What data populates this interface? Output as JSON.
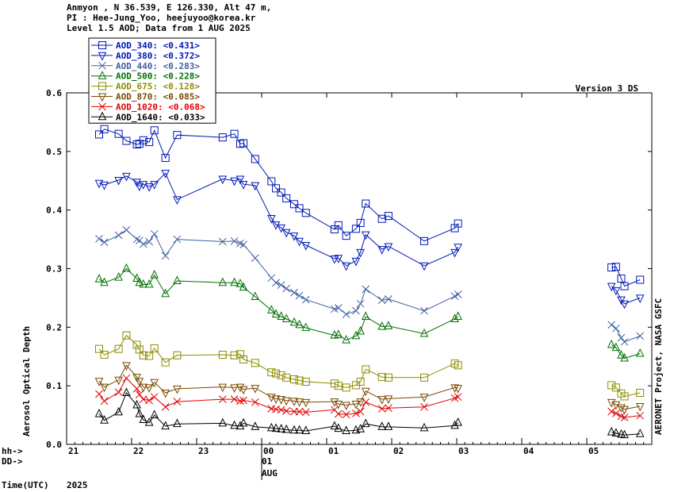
{
  "header": {
    "line1": "Anmyon , N 36.539, E 126.330, Alt 47 m,",
    "line2": "PI : Hee-Jung_Yoo, heejuyoo@korea.kr",
    "line3": "Level 1.5 AOD; Data from 1 AUG 2025"
  },
  "version_label": "Version 3 DS",
  "credit_label": "AERONET Project, NASA GSFC",
  "x_axis": {
    "hh_label": "hh->",
    "dd_label": "DD->",
    "time_label": "Time(UTC)",
    "year_label": "2025",
    "hour_ticks": [
      "21",
      "22",
      "23",
      "00",
      "01",
      "02",
      "03",
      "04",
      "05"
    ],
    "day_tick": "01",
    "month_tick": "AUG"
  },
  "chart_data": {
    "type": "line",
    "ylabel": "Aerosol Optical Depth",
    "ylim": [
      0.0,
      0.6
    ],
    "yticks": [
      "0.0",
      "0.1",
      "0.2",
      "0.3",
      "0.4",
      "0.5",
      "0.6"
    ],
    "xlim": [
      21.0,
      30.0
    ],
    "x_units": "hours UTC since 00:00 on 31 JUL 2025 (00 = 1 AUG 00 UTC)",
    "legend_position": "top-left",
    "series": [
      {
        "name": "AOD_340",
        "mean": "<0.431>",
        "color": "#0018b4",
        "marker": "square",
        "x": [
          21.5,
          21.58,
          21.8,
          21.92,
          22.08,
          22.12,
          22.18,
          22.27,
          22.35,
          22.52,
          22.7,
          23.4,
          23.58,
          23.67,
          23.72,
          23.9,
          24.15,
          24.22,
          24.3,
          24.38,
          24.5,
          24.58,
          24.68,
          25.12,
          25.18,
          25.3,
          25.45,
          25.52,
          25.6,
          25.85,
          25.95,
          26.5,
          26.97,
          27.02
        ],
        "y": [
          0.529,
          0.538,
          0.53,
          0.518,
          0.512,
          0.513,
          0.519,
          0.516,
          0.536,
          0.489,
          0.528,
          0.524,
          0.53,
          0.513,
          0.514,
          0.487,
          0.449,
          0.437,
          0.43,
          0.42,
          0.41,
          0.403,
          0.395,
          0.367,
          0.374,
          0.356,
          0.368,
          0.378,
          0.411,
          0.385,
          0.39,
          0.347,
          0.369,
          0.377
        ]
      },
      {
        "name": "AOD_380",
        "mean": "<0.372>",
        "color": "#0018b4",
        "marker": "triangle-down",
        "x": [
          21.5,
          21.58,
          21.8,
          21.92,
          22.08,
          22.12,
          22.18,
          22.27,
          22.35,
          22.52,
          22.7,
          23.4,
          23.58,
          23.67,
          23.72,
          23.9,
          24.15,
          24.22,
          24.3,
          24.38,
          24.5,
          24.58,
          24.68,
          25.12,
          25.18,
          25.3,
          25.45,
          25.52,
          25.6,
          25.85,
          25.95,
          26.5,
          26.97,
          27.02
        ],
        "y": [
          0.446,
          0.443,
          0.451,
          0.458,
          0.448,
          0.441,
          0.444,
          0.44,
          0.444,
          0.463,
          0.418,
          0.453,
          0.45,
          0.453,
          0.444,
          0.442,
          0.386,
          0.375,
          0.37,
          0.362,
          0.356,
          0.347,
          0.34,
          0.317,
          0.318,
          0.305,
          0.313,
          0.328,
          0.358,
          0.333,
          0.338,
          0.305,
          0.328,
          0.337
        ]
      },
      {
        "name": "AOD_440",
        "mean": "<0.283>",
        "color": "#4060a0",
        "marker": "x",
        "x": [
          21.5,
          21.58,
          21.8,
          21.92,
          22.08,
          22.12,
          22.18,
          22.27,
          22.35,
          22.52,
          22.7,
          23.4,
          23.58,
          23.67,
          23.72,
          23.9,
          24.15,
          24.22,
          24.3,
          24.38,
          24.5,
          24.58,
          24.68,
          25.12,
          25.18,
          25.3,
          25.45,
          25.52,
          25.6,
          25.85,
          25.95,
          26.5,
          26.97,
          27.02
        ],
        "y": [
          0.351,
          0.345,
          0.357,
          0.366,
          0.35,
          0.348,
          0.342,
          0.346,
          0.359,
          0.322,
          0.35,
          0.346,
          0.347,
          0.343,
          0.341,
          0.318,
          0.284,
          0.276,
          0.272,
          0.266,
          0.259,
          0.254,
          0.247,
          0.231,
          0.233,
          0.222,
          0.228,
          0.24,
          0.265,
          0.246,
          0.248,
          0.228,
          0.253,
          0.256
        ]
      },
      {
        "name": "AOD_500",
        "mean": "<0.228>",
        "color": "#007000",
        "marker": "triangle-up",
        "x": [
          21.5,
          21.58,
          21.8,
          21.92,
          22.08,
          22.12,
          22.18,
          22.27,
          22.35,
          22.52,
          22.7,
          23.4,
          23.58,
          23.67,
          23.72,
          23.9,
          24.15,
          24.22,
          24.3,
          24.38,
          24.5,
          24.58,
          24.68,
          25.12,
          25.18,
          25.3,
          25.45,
          25.52,
          25.6,
          25.85,
          25.95,
          26.5,
          26.97,
          27.02
        ],
        "y": [
          0.282,
          0.276,
          0.285,
          0.3,
          0.283,
          0.276,
          0.273,
          0.273,
          0.289,
          0.257,
          0.279,
          0.276,
          0.276,
          0.274,
          0.268,
          0.252,
          0.229,
          0.222,
          0.218,
          0.214,
          0.208,
          0.204,
          0.199,
          0.186,
          0.187,
          0.178,
          0.185,
          0.193,
          0.218,
          0.201,
          0.202,
          0.189,
          0.214,
          0.218
        ]
      },
      {
        "name": "AOD_675",
        "mean": "<0.128>",
        "color": "#8c8c00",
        "marker": "square",
        "x": [
          21.5,
          21.58,
          21.8,
          21.92,
          22.08,
          22.12,
          22.18,
          22.27,
          22.35,
          22.52,
          22.7,
          23.4,
          23.58,
          23.67,
          23.72,
          23.9,
          24.15,
          24.22,
          24.3,
          24.38,
          24.5,
          24.58,
          24.68,
          25.12,
          25.18,
          25.3,
          25.45,
          25.52,
          25.6,
          25.85,
          25.95,
          26.5,
          26.97,
          27.02
        ],
        "y": [
          0.163,
          0.153,
          0.163,
          0.186,
          0.17,
          0.162,
          0.152,
          0.151,
          0.164,
          0.14,
          0.152,
          0.153,
          0.152,
          0.154,
          0.145,
          0.139,
          0.123,
          0.121,
          0.118,
          0.114,
          0.111,
          0.109,
          0.107,
          0.104,
          0.1,
          0.097,
          0.101,
          0.107,
          0.128,
          0.115,
          0.114,
          0.114,
          0.138,
          0.135
        ]
      },
      {
        "name": "AOD_870",
        "mean": "<0.085>",
        "color": "#7a4a00",
        "marker": "triangle-down",
        "x": [
          21.5,
          21.58,
          21.8,
          21.92,
          22.08,
          22.12,
          22.18,
          22.27,
          22.35,
          22.52,
          22.7,
          23.4,
          23.58,
          23.67,
          23.72,
          23.9,
          24.15,
          24.22,
          24.3,
          24.38,
          24.5,
          24.58,
          24.68,
          25.12,
          25.18,
          25.3,
          25.45,
          25.52,
          25.6,
          25.85,
          25.95,
          26.5,
          26.97,
          27.02
        ],
        "y": [
          0.108,
          0.098,
          0.11,
          0.135,
          0.115,
          0.108,
          0.098,
          0.097,
          0.106,
          0.088,
          0.095,
          0.098,
          0.097,
          0.098,
          0.094,
          0.096,
          0.081,
          0.078,
          0.077,
          0.075,
          0.074,
          0.073,
          0.072,
          0.073,
          0.069,
          0.067,
          0.069,
          0.073,
          0.091,
          0.077,
          0.078,
          0.081,
          0.097,
          0.096
        ]
      },
      {
        "name": "AOD_1020",
        "mean": "<0.068>",
        "color": "#e00000",
        "marker": "x",
        "x": [
          21.5,
          21.58,
          21.8,
          21.92,
          22.08,
          22.12,
          22.18,
          22.27,
          22.35,
          22.52,
          22.7,
          23.4,
          23.58,
          23.67,
          23.72,
          23.9,
          24.15,
          24.22,
          24.3,
          24.38,
          24.5,
          24.58,
          24.68,
          25.12,
          25.18,
          25.3,
          25.45,
          25.52,
          25.6,
          25.85,
          25.95,
          26.5,
          26.97,
          27.02
        ],
        "y": [
          0.086,
          0.074,
          0.089,
          0.113,
          0.095,
          0.085,
          0.077,
          0.075,
          0.081,
          0.064,
          0.073,
          0.077,
          0.077,
          0.074,
          0.075,
          0.072,
          0.061,
          0.06,
          0.059,
          0.057,
          0.056,
          0.056,
          0.055,
          0.059,
          0.052,
          0.051,
          0.053,
          0.056,
          0.072,
          0.061,
          0.062,
          0.064,
          0.079,
          0.081
        ]
      },
      {
        "name": "AOD_1640",
        "mean": "<0.033>",
        "color": "#000000",
        "marker": "triangle-up",
        "x": [
          21.5,
          21.58,
          21.8,
          21.92,
          22.08,
          22.12,
          22.18,
          22.27,
          22.35,
          22.52,
          22.7,
          23.4,
          23.58,
          23.67,
          23.72,
          23.9,
          24.15,
          24.22,
          24.3,
          24.38,
          24.5,
          24.58,
          24.68,
          25.12,
          25.18,
          25.3,
          25.45,
          25.52,
          25.6,
          25.85,
          25.95,
          26.5,
          26.97,
          27.02
        ],
        "y": [
          0.052,
          0.041,
          0.055,
          0.088,
          0.067,
          0.052,
          0.042,
          0.037,
          0.05,
          0.031,
          0.035,
          0.036,
          0.032,
          0.031,
          0.036,
          0.03,
          0.028,
          0.027,
          0.026,
          0.025,
          0.024,
          0.024,
          0.023,
          0.031,
          0.027,
          0.023,
          0.024,
          0.026,
          0.035,
          0.03,
          0.03,
          0.028,
          0.032,
          0.037
        ]
      }
    ],
    "late_series": [
      {
        "name": "AOD_340",
        "x": [
          29.38,
          29.45,
          29.53,
          29.58,
          29.82
        ],
        "y": [
          0.302,
          0.303,
          0.283,
          0.27,
          0.281
        ]
      },
      {
        "name": "AOD_380",
        "x": [
          29.38,
          29.45,
          29.53,
          29.58,
          29.82
        ],
        "y": [
          0.27,
          0.263,
          0.247,
          0.24,
          0.25
        ]
      },
      {
        "name": "AOD_440",
        "x": [
          29.38,
          29.45,
          29.53,
          29.58,
          29.82
        ],
        "y": [
          0.204,
          0.198,
          0.182,
          0.175,
          0.185
        ]
      },
      {
        "name": "AOD_500",
        "x": [
          29.38,
          29.45,
          29.53,
          29.58,
          29.82
        ],
        "y": [
          0.17,
          0.165,
          0.152,
          0.147,
          0.155
        ]
      },
      {
        "name": "AOD_675",
        "x": [
          29.38,
          29.45,
          29.53,
          29.58,
          29.82
        ],
        "y": [
          0.101,
          0.097,
          0.087,
          0.082,
          0.088
        ]
      },
      {
        "name": "AOD_870",
        "x": [
          29.38,
          29.45,
          29.53,
          29.58,
          29.82
        ],
        "y": [
          0.072,
          0.068,
          0.063,
          0.06,
          0.065
        ]
      },
      {
        "name": "AOD_1020",
        "x": [
          29.38,
          29.45,
          29.53,
          29.58,
          29.82
        ],
        "y": [
          0.056,
          0.053,
          0.048,
          0.046,
          0.049
        ]
      },
      {
        "name": "AOD_1640",
        "x": [
          29.38,
          29.45,
          29.53,
          29.58,
          29.82
        ],
        "y": [
          0.021,
          0.019,
          0.017,
          0.016,
          0.018
        ]
      }
    ]
  }
}
